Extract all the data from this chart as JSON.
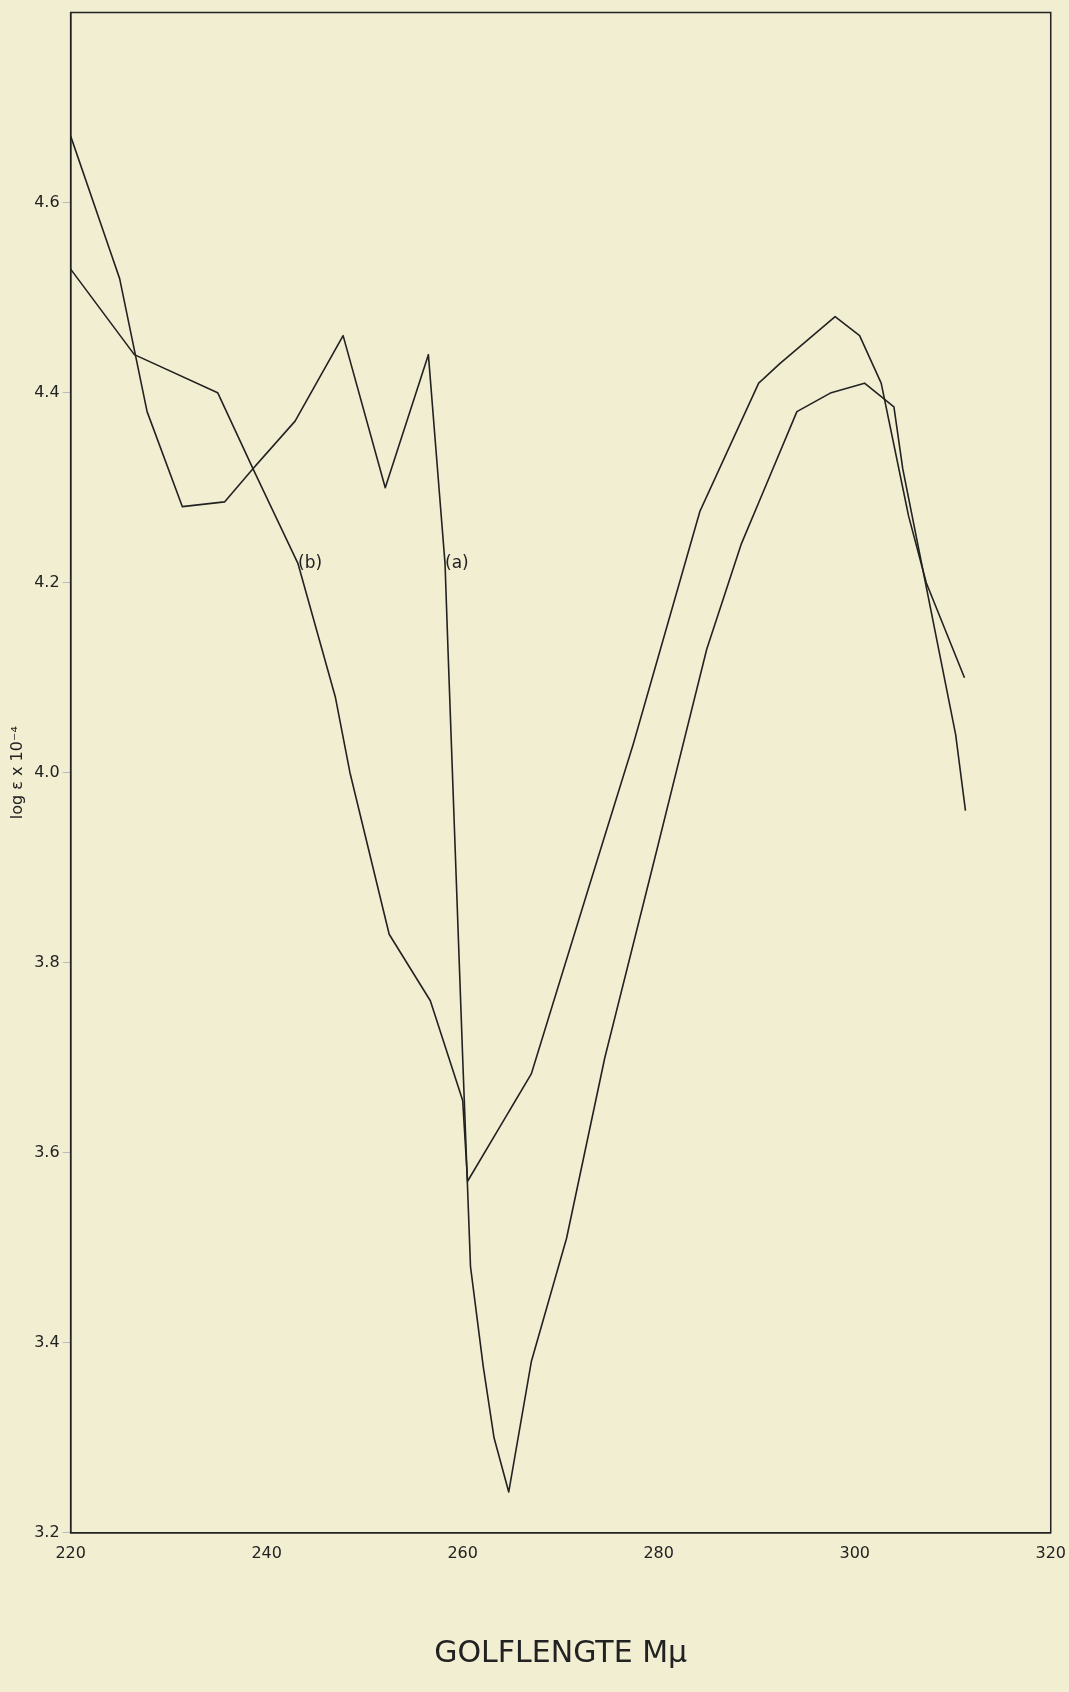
{
  "chart_data": {
    "type": "line",
    "xlabel": "GOLFLENGTE Mμ",
    "ylabel": "log ε x 10⁻⁴",
    "xlim": [
      220,
      320
    ],
    "xticks": [
      220,
      240,
      260,
      280,
      300,
      320
    ],
    "ylim": [
      3.2,
      4.8
    ],
    "yticks": [
      3.2,
      3.4,
      3.6,
      3.8,
      {
        "value": 4.0,
        "label": "4.0"
      },
      4.2,
      4.4,
      4.6
    ],
    "grid": false,
    "legend": false,
    "marker": "none",
    "line_style": "solid",
    "series": [
      {
        "color": "#222222",
        "x": [
          220,
          225,
          227.8,
          231.4,
          235.7,
          238.6,
          242.9,
          247.8,
          252.1,
          256.5,
          258.2,
          258.5,
          260,
          260.8,
          262.1,
          263.2,
          264.7,
          267,
          270.6,
          274.5,
          279.6,
          284.9,
          288.4,
          294.1,
          297.6,
          301,
          304,
          304.9,
          310.3,
          311.3
        ],
        "values": [
          4.67,
          4.52,
          4.38,
          4.28,
          4.285,
          4.32,
          4.37,
          4.46,
          4.3,
          4.44,
          4.22,
          4.13,
          3.7,
          3.48,
          3.375,
          3.3,
          3.243,
          3.38,
          3.51,
          3.7,
          3.91,
          4.13,
          4.24,
          4.38,
          4.4,
          4.41,
          4.385,
          4.32,
          4.04,
          3.96
        ]
      },
      {
        "color": "#222222",
        "x": [
          220,
          226.5,
          235,
          238.6,
          243.2,
          247,
          248.5,
          252.5,
          256.7,
          260,
          260.5,
          267,
          272.8,
          277.4,
          284.2,
          290.2,
          292.3,
          298,
          300.5,
          302.7,
          305.5,
          307.3,
          311.2
        ],
        "values": [
          4.53,
          4.44,
          4.4,
          4.32,
          4.22,
          4.08,
          4.0,
          3.83,
          3.76,
          3.655,
          3.57,
          3.683,
          3.877,
          4.03,
          4.275,
          4.41,
          4.43,
          4.48,
          4.46,
          4.41,
          4.27,
          4.2,
          4.1
        ]
      }
    ],
    "annotations": [
      {
        "text": "(b)",
        "x": 243.2,
        "y": 4.22
      },
      {
        "text": "(a)",
        "x": 258.2,
        "y": 4.22
      }
    ]
  }
}
